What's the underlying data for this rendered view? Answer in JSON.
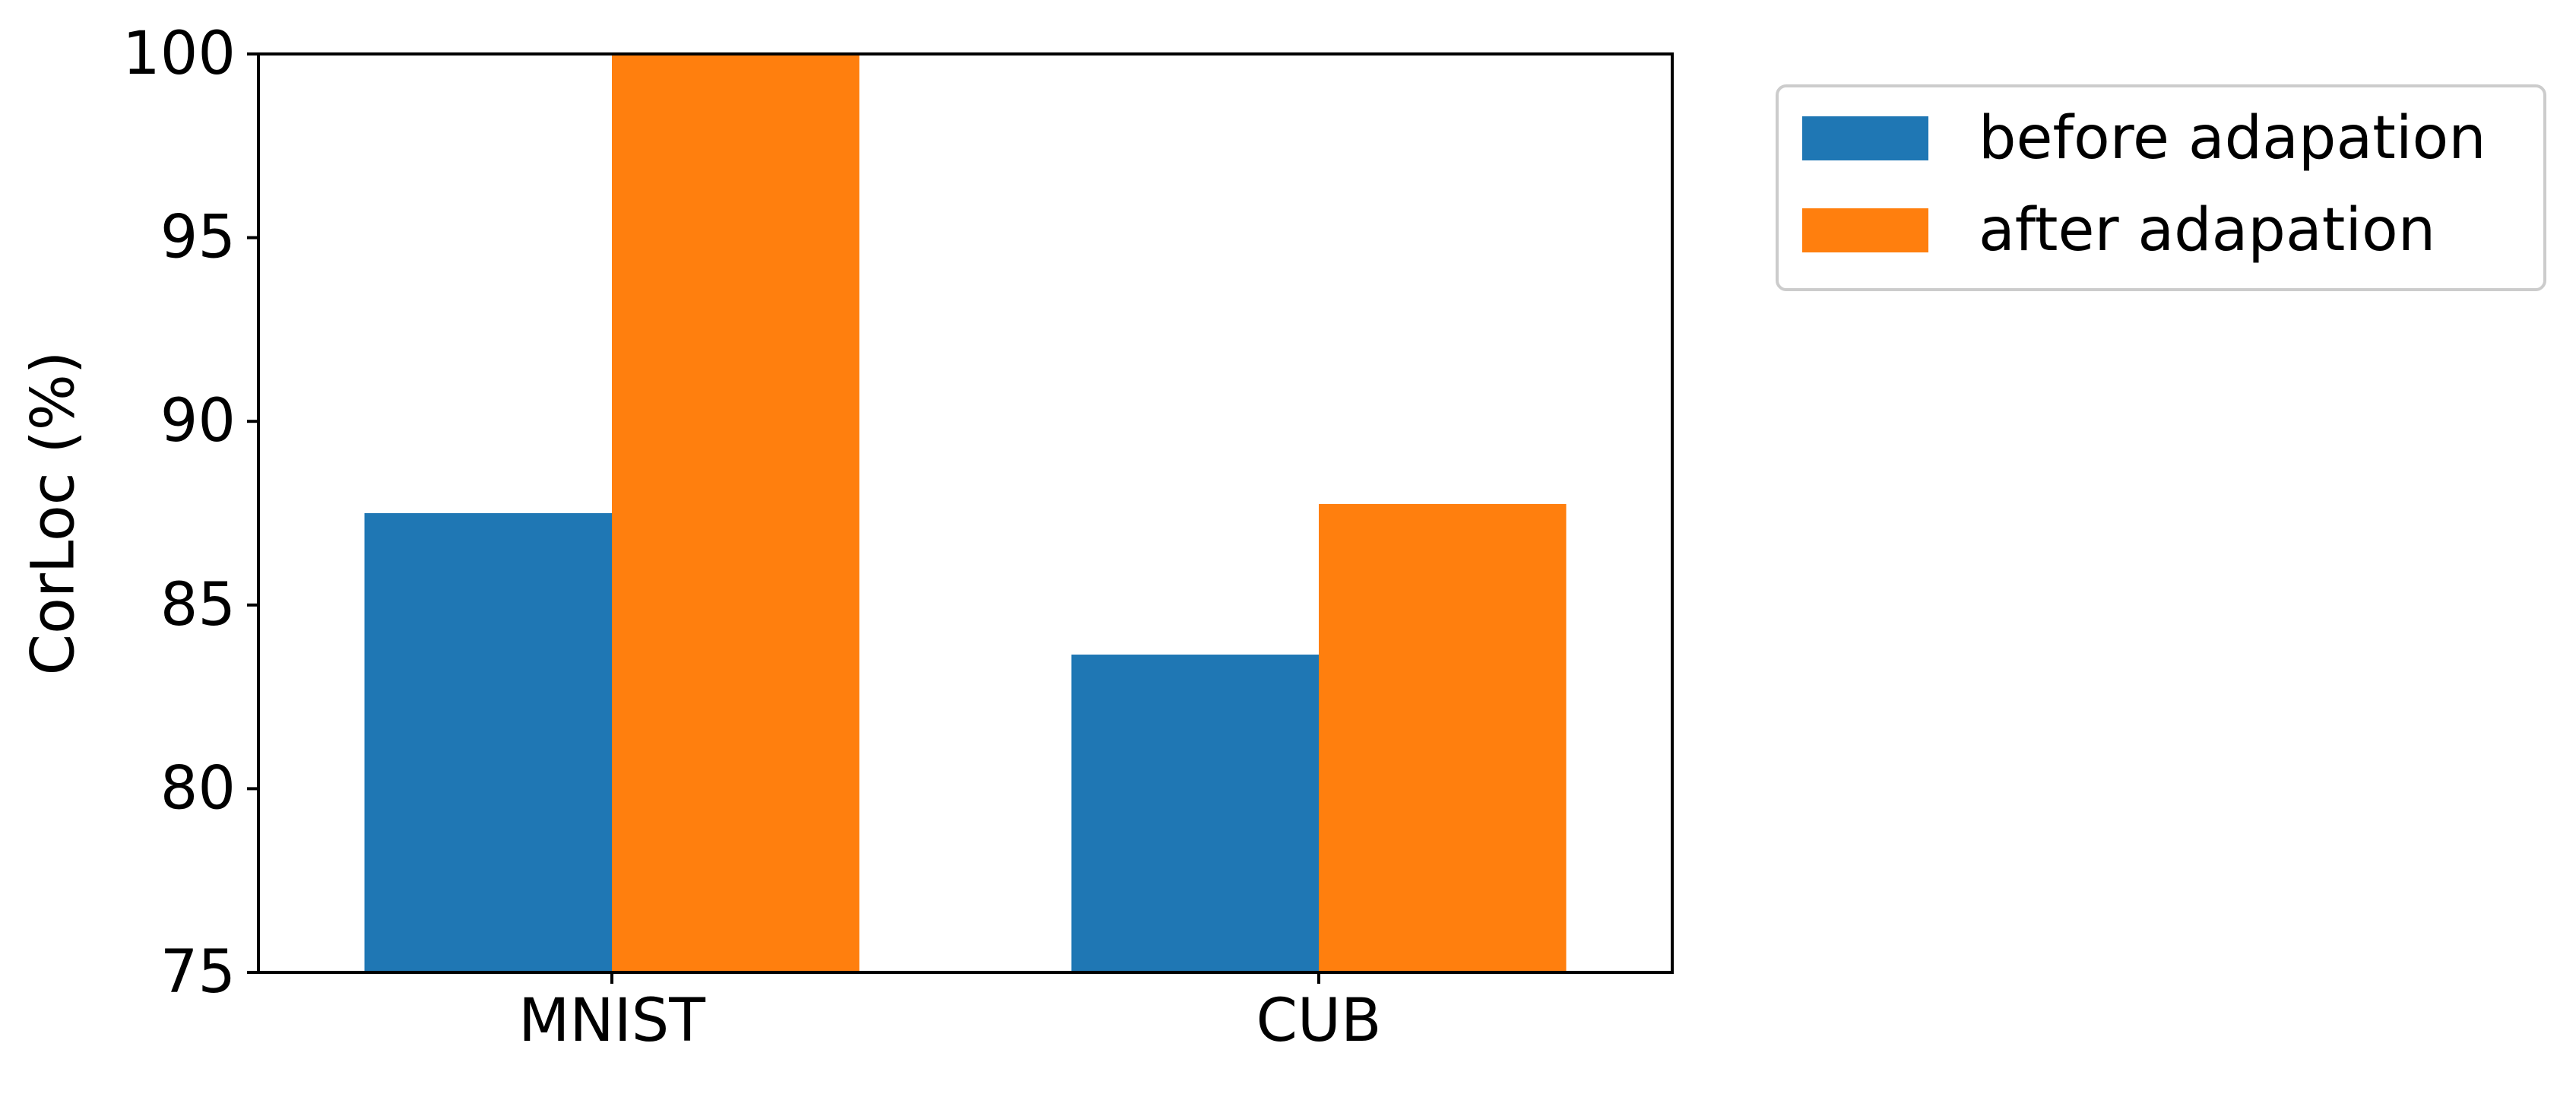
{
  "chart_data": {
    "type": "bar",
    "categories": [
      "MNIST",
      "CUB"
    ],
    "series": [
      {
        "name": "before adapation",
        "values": [
          87.5,
          83.65
        ],
        "color": "#1f77b4"
      },
      {
        "name": "after adapation",
        "values": [
          100.0,
          87.75
        ],
        "color": "#ff7f0e"
      }
    ],
    "title": "",
    "xlabel": "",
    "ylabel": "CorLoc (%)",
    "ylim": [
      75,
      100
    ],
    "yticks": [
      "75",
      "80",
      "85",
      "90",
      "95",
      "100"
    ],
    "grid": false,
    "legend_position": "outside-right-top"
  }
}
